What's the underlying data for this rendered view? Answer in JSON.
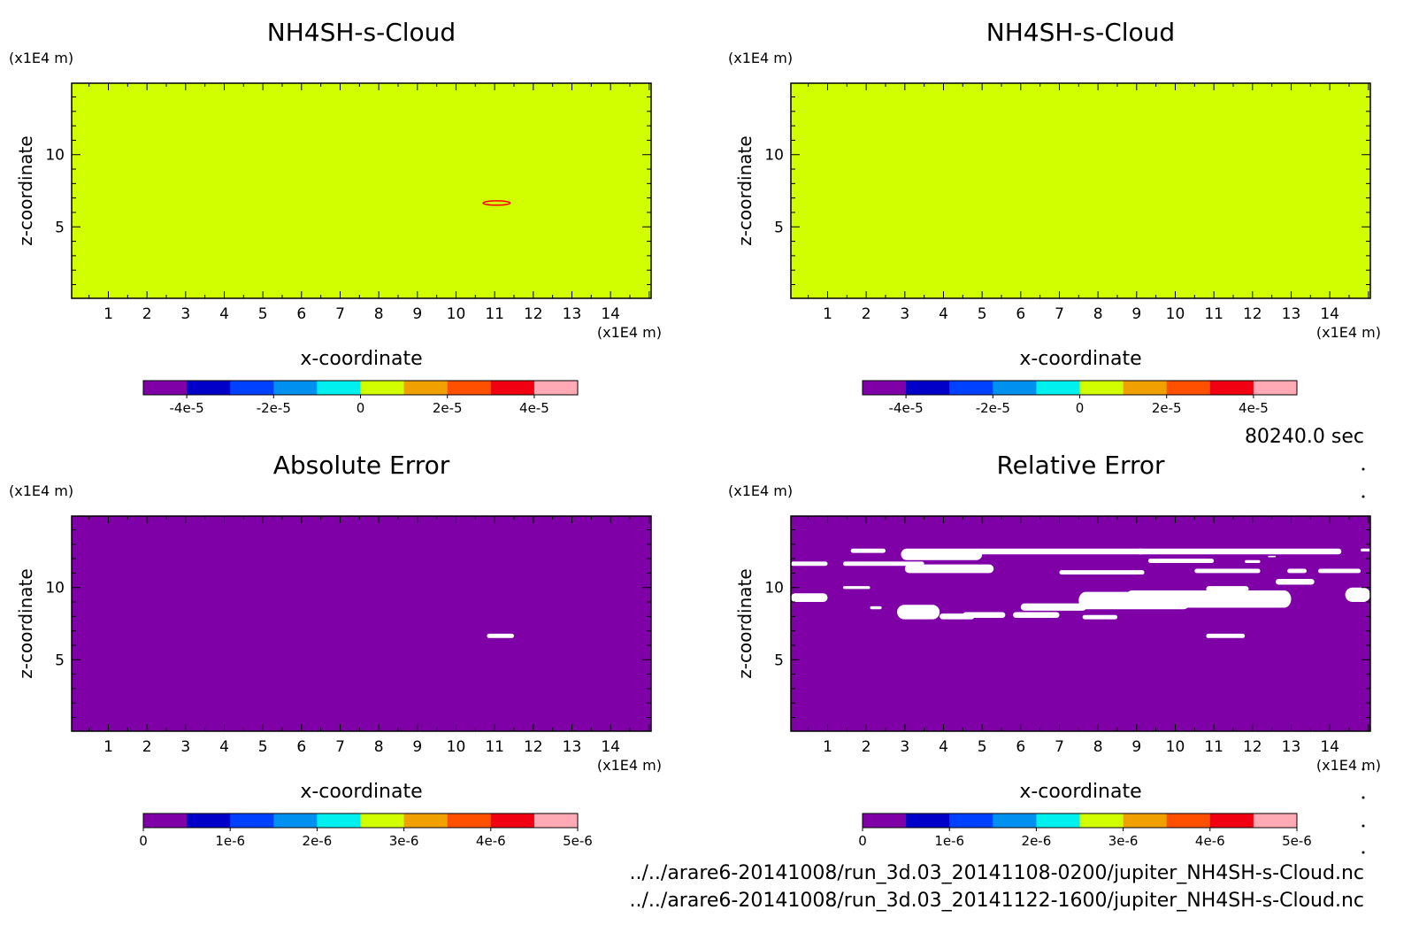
{
  "figure": {
    "time_label": "80240.0 sec",
    "files": [
      "../../arare6-20141008/run_3d.03_20141108-0200/jupiter_NH4SH-s-Cloud.nc",
      "../../arare6-20141008/run_3d.03_20141122-1600/jupiter_NH4SH-s-Cloud.nc"
    ]
  },
  "chart_data": [
    {
      "type": "heatmap",
      "title": "NH4SH-s-Cloud",
      "xlabel": "x-coordinate",
      "ylabel": "z-coordinate",
      "x_unit": "(x1E4 m)",
      "y_unit": "(x1E4 m)",
      "xlim": [
        0.05,
        15.05
      ],
      "ylim": [
        0.05,
        14.95
      ],
      "x_ticks": [
        1,
        2,
        3,
        4,
        5,
        6,
        7,
        8,
        9,
        10,
        11,
        12,
        13,
        14
      ],
      "y_ticks": [
        5,
        10
      ],
      "background_value": 0,
      "features": [
        {
          "kind": "contour",
          "x": [
            10.7,
            11.4
          ],
          "z": [
            6.5,
            6.8
          ],
          "color": "#ff0000"
        }
      ],
      "colorbar": {
        "colors": [
          "#8000a8",
          "#0000c8",
          "#0040ff",
          "#0090f0",
          "#00f0f0",
          "#d2ff00",
          "#f0a000",
          "#ff5000",
          "#f00010",
          "#ffaab4"
        ],
        "tick_labels": [
          "-4e-5",
          "-2e-5",
          "0",
          "2e-5",
          "4e-5"
        ],
        "tick_values": [
          -4e-05,
          -2e-05,
          0,
          2e-05,
          4e-05
        ],
        "range": [
          -5e-05,
          5e-05
        ]
      }
    },
    {
      "type": "heatmap",
      "title": "NH4SH-s-Cloud",
      "xlabel": "x-coordinate",
      "ylabel": "z-coordinate",
      "x_unit": "(x1E4 m)",
      "y_unit": "(x1E4 m)",
      "xlim": [
        0.05,
        15.05
      ],
      "ylim": [
        0.05,
        14.95
      ],
      "x_ticks": [
        1,
        2,
        3,
        4,
        5,
        6,
        7,
        8,
        9,
        10,
        11,
        12,
        13,
        14
      ],
      "y_ticks": [
        5,
        10
      ],
      "background_value": 0,
      "features": [],
      "colorbar": {
        "colors": [
          "#8000a8",
          "#0000c8",
          "#0040ff",
          "#0090f0",
          "#00f0f0",
          "#d2ff00",
          "#f0a000",
          "#ff5000",
          "#f00010",
          "#ffaab4"
        ],
        "tick_labels": [
          "-4e-5",
          "-2e-5",
          "0",
          "2e-5",
          "4e-5"
        ],
        "tick_values": [
          -4e-05,
          -2e-05,
          0,
          2e-05,
          4e-05
        ],
        "range": [
          -5e-05,
          5e-05
        ]
      }
    },
    {
      "type": "heatmap",
      "title": "Absolute Error",
      "xlabel": "x-coordinate",
      "ylabel": "z-coordinate",
      "x_unit": "(x1E4 m)",
      "y_unit": "(x1E4 m)",
      "xlim": [
        0.05,
        15.05
      ],
      "ylim": [
        0.05,
        14.95
      ],
      "x_ticks": [
        1,
        2,
        3,
        4,
        5,
        6,
        7,
        8,
        9,
        10,
        11,
        12,
        13,
        14
      ],
      "y_ticks": [
        5,
        10
      ],
      "background_value": 0,
      "features": [
        {
          "kind": "blob",
          "x": [
            10.8,
            11.5
          ],
          "z": [
            6.5,
            6.8
          ],
          "color": "#ffffff"
        }
      ],
      "colorbar": {
        "colors": [
          "#8000a8",
          "#0000c8",
          "#0040ff",
          "#0090f0",
          "#00f0f0",
          "#d2ff00",
          "#f0a000",
          "#ff5000",
          "#f00010",
          "#ffaab4"
        ],
        "tick_labels": [
          "0",
          "1e-6",
          "2e-6",
          "3e-6",
          "4e-6",
          "5e-6"
        ],
        "tick_values": [
          0,
          1e-06,
          2e-06,
          3e-06,
          4e-06,
          5e-06
        ],
        "range": [
          0,
          5e-06
        ]
      }
    },
    {
      "type": "heatmap",
      "title": "Relative Error",
      "xlabel": "x-coordinate",
      "ylabel": "z-coordinate",
      "x_unit": "(x1E4 m)",
      "y_unit": "(x1E4 m)",
      "xlim": [
        0.05,
        15.05
      ],
      "ylim": [
        0.05,
        14.95
      ],
      "x_ticks": [
        1,
        2,
        3,
        4,
        5,
        6,
        7,
        8,
        9,
        10,
        11,
        12,
        13,
        14
      ],
      "y_ticks": [
        5,
        10
      ],
      "background_value": 0,
      "features": [
        {
          "kind": "blob",
          "x": [
            0.05,
            1.0
          ],
          "z": [
            11.5,
            11.8
          ]
        },
        {
          "kind": "blob",
          "x": [
            1.6,
            2.5
          ],
          "z": [
            12.4,
            12.7
          ]
        },
        {
          "kind": "blob",
          "x": [
            2.9,
            5.0
          ],
          "z": [
            11.9,
            12.7
          ]
        },
        {
          "kind": "blob",
          "x": [
            4.8,
            9.2
          ],
          "z": [
            12.3,
            12.7
          ]
        },
        {
          "kind": "blob",
          "x": [
            9.0,
            14.3
          ],
          "z": [
            12.3,
            12.7
          ]
        },
        {
          "kind": "blob",
          "x": [
            1.4,
            3.5
          ],
          "z": [
            11.5,
            11.8
          ]
        },
        {
          "kind": "blob",
          "x": [
            3.0,
            5.3
          ],
          "z": [
            11.0,
            11.6
          ]
        },
        {
          "kind": "blob",
          "x": [
            9.3,
            11.0
          ],
          "z": [
            11.7,
            12.0
          ]
        },
        {
          "kind": "blob",
          "x": [
            11.8,
            12.2
          ],
          "z": [
            11.7,
            11.9
          ]
        },
        {
          "kind": "blob",
          "x": [
            12.4,
            12.6
          ],
          "z": [
            12.1,
            12.2
          ]
        },
        {
          "kind": "blob",
          "x": [
            14.8,
            15.05
          ],
          "z": [
            12.5,
            12.7
          ]
        },
        {
          "kind": "blob",
          "x": [
            7.0,
            9.2
          ],
          "z": [
            10.9,
            11.2
          ]
        },
        {
          "kind": "blob",
          "x": [
            10.5,
            12.2
          ],
          "z": [
            11.0,
            11.3
          ]
        },
        {
          "kind": "blob",
          "x": [
            12.9,
            13.4
          ],
          "z": [
            11.0,
            11.3
          ]
        },
        {
          "kind": "blob",
          "x": [
            13.7,
            14.8
          ],
          "z": [
            11.0,
            11.3
          ]
        },
        {
          "kind": "blob",
          "x": [
            12.6,
            13.6
          ],
          "z": [
            10.2,
            10.6
          ]
        },
        {
          "kind": "blob",
          "x": [
            1.4,
            2.1
          ],
          "z": [
            9.9,
            10.1
          ]
        },
        {
          "kind": "blob",
          "x": [
            0.05,
            1.0
          ],
          "z": [
            9.0,
            9.6
          ]
        },
        {
          "kind": "blob",
          "x": [
            2.1,
            2.4
          ],
          "z": [
            8.5,
            8.7
          ]
        },
        {
          "kind": "blob",
          "x": [
            2.8,
            3.9
          ],
          "z": [
            7.8,
            8.8
          ]
        },
        {
          "kind": "blob",
          "x": [
            3.9,
            4.8
          ],
          "z": [
            7.8,
            8.2
          ]
        },
        {
          "kind": "blob",
          "x": [
            4.5,
            5.6
          ],
          "z": [
            7.9,
            8.3
          ]
        },
        {
          "kind": "blob",
          "x": [
            5.8,
            7.0
          ],
          "z": [
            7.9,
            8.3
          ]
        },
        {
          "kind": "blob",
          "x": [
            6.0,
            7.7
          ],
          "z": [
            8.4,
            8.9
          ]
        },
        {
          "kind": "blob",
          "x": [
            7.5,
            10.4
          ],
          "z": [
            8.5,
            9.7
          ]
        },
        {
          "kind": "blob",
          "x": [
            8.7,
            13.0
          ],
          "z": [
            8.6,
            9.8
          ]
        },
        {
          "kind": "blob",
          "x": [
            10.8,
            11.9
          ],
          "z": [
            9.7,
            10.1
          ]
        },
        {
          "kind": "blob",
          "x": [
            7.6,
            8.5
          ],
          "z": [
            7.8,
            8.1
          ]
        },
        {
          "kind": "blob",
          "x": [
            10.8,
            11.8
          ],
          "z": [
            6.5,
            6.8
          ]
        },
        {
          "kind": "blob",
          "x": [
            14.4,
            15.05
          ],
          "z": [
            9.0,
            10.0
          ]
        }
      ],
      "colorbar": {
        "colors": [
          "#8000a8",
          "#0000c8",
          "#0040ff",
          "#0090f0",
          "#00f0f0",
          "#d2ff00",
          "#f0a000",
          "#ff5000",
          "#f00010",
          "#ffaab4"
        ],
        "tick_labels": [
          "0",
          "1e-6",
          "2e-6",
          "3e-6",
          "4e-6",
          "5e-6"
        ],
        "tick_values": [
          0,
          1e-06,
          2e-06,
          3e-06,
          4e-06,
          5e-06
        ],
        "range": [
          0,
          5e-06
        ]
      }
    }
  ]
}
